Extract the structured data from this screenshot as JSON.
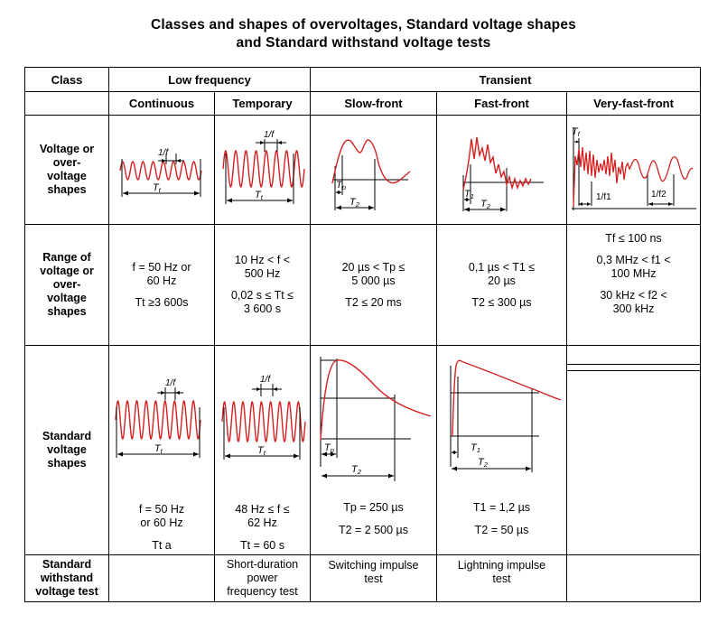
{
  "title": {
    "line1": "Classes and shapes of overvoltages, Standard voltage shapes",
    "line2": "and Standard withstand voltage tests"
  },
  "header": {
    "class": "Class",
    "low_frequency": "Low frequency",
    "transient": "Transient",
    "continuous": "Continuous",
    "temporary": "Temporary",
    "slow_front": "Slow-front",
    "fast_front": "Fast-front",
    "very_fast_front": "Very-fast-front"
  },
  "rows": {
    "shapes_label": [
      "Voltage or",
      "over-",
      "voltage",
      "shapes"
    ],
    "range_label": [
      "Range of",
      "voltage or",
      "over-",
      "voltage",
      "shapes"
    ],
    "standard_label": [
      "Standard",
      "voltage",
      "shapes"
    ],
    "test_label": [
      "Standard",
      "withstand",
      "voltage test"
    ]
  },
  "figure_labels": {
    "one_over_f": "1/f",
    "tt_main": "T",
    "tt_sub": "t",
    "tp_main": "T",
    "tp_sub": "p",
    "t1_main": "T",
    "t1_sub": "1",
    "t2_main": "T",
    "t2_sub": "2",
    "tf_main": "T",
    "tf_sub": "f",
    "one_over_f1": "1/f1",
    "one_over_f2": "1/f2"
  },
  "ranges": {
    "continuous": [
      "f = 50 Hz or",
      "60 Hz",
      "Tt ≥3 600s"
    ],
    "temporary": [
      "10 Hz < f <",
      "500 Hz",
      "0,02 s ≤ Tt ≤",
      "3 600 s"
    ],
    "slow_front": [
      "20 µs < Tp ≤",
      "5 000 µs",
      "T2 ≤ 20 ms"
    ],
    "fast_front": [
      "0,1 µs < T1 ≤",
      "20 µs",
      "T2 ≤ 300 µs"
    ],
    "very_fast_front": [
      "Tf ≤ 100 ns",
      "0,3 MHz < f1 <",
      "100 MHz",
      "30 kHz < f2 <",
      "300 kHz"
    ]
  },
  "standard_values": {
    "continuous": [
      "f = 50 Hz",
      "or 60 Hz",
      "Tt a"
    ],
    "temporary": [
      "48 Hz ≤ f ≤",
      "62 Hz",
      "Tt = 60 s"
    ],
    "slow_front": [
      "Tp = 250 µs",
      "T2 = 2 500 µs"
    ],
    "fast_front": [
      "T1 = 1,2 µs",
      "T2 = 50 µs"
    ]
  },
  "tests": {
    "temporary": [
      "Short-duration",
      "power",
      "frequency test"
    ],
    "slow_front": [
      "Switching impulse",
      "test"
    ],
    "fast_front": [
      "Lightning impulse",
      "test"
    ]
  },
  "colors": {
    "waveform": "#d42020",
    "line": "#000000"
  }
}
